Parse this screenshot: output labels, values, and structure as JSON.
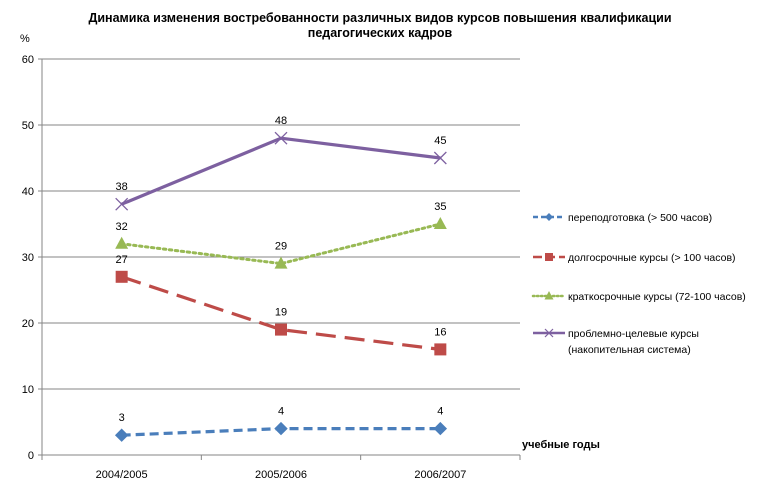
{
  "chart_data": {
    "type": "line",
    "title": [
      "Динамика изменения востребованности различных видов курсов повышения квалификации",
      "педагогических кадров"
    ],
    "ylabel": "%",
    "xlabel": "учебные годы",
    "ylim": [
      0,
      60
    ],
    "yticks": [
      0,
      10,
      20,
      30,
      40,
      50,
      60
    ],
    "categories": [
      "2004/2005",
      "2005/2006",
      "2006/2007"
    ],
    "grid": "horizontal",
    "legend": "right",
    "series": [
      {
        "name": "переподготовка (> 500 часов)",
        "values": [
          3,
          4,
          4
        ],
        "color": "#4a7ebb",
        "dash": "short-dash",
        "marker": "diamond"
      },
      {
        "name": "долгосрочные курсы (> 100 часов)",
        "values": [
          27,
          19,
          16
        ],
        "color": "#be4b48",
        "dash": "long-dash",
        "marker": "square"
      },
      {
        "name": "краткосрочные курсы (72-100 часов)",
        "values": [
          32,
          29,
          35
        ],
        "color": "#98b954",
        "dash": "dot",
        "marker": "triangle"
      },
      {
        "name": [
          "проблемно-целевые курсы",
          "(накопительная система)"
        ],
        "values": [
          38,
          48,
          45
        ],
        "color": "#7d60a0",
        "dash": "solid",
        "marker": "x"
      }
    ]
  }
}
